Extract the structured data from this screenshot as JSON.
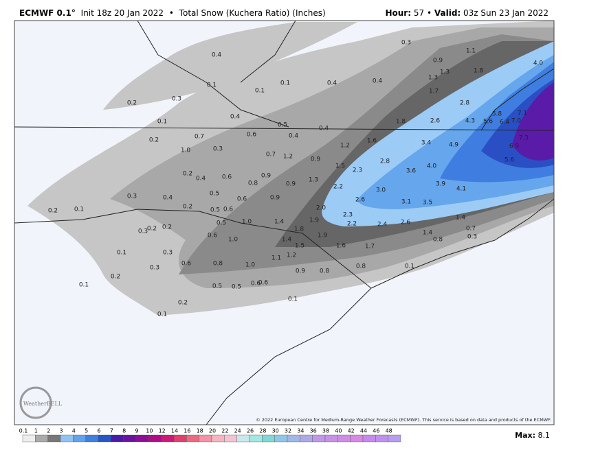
{
  "header": {
    "title": "ECMWF 0.1°",
    "init": "Init 18z 20 Jan 2022",
    "separator": "•",
    "product": "Total Snow (Kuchera Ratio) (Inches)",
    "hour_label": "Hour:",
    "hour": 57,
    "valid_label": "Valid:",
    "valid": "03z Sun 23 Jan 2022"
  },
  "map_labels": [
    "0.4",
    "0.3",
    "1.1",
    "4.0",
    "0.9",
    "1.3",
    "1.8",
    "0.1",
    "0.1",
    "0.1",
    "0.4",
    "0.4",
    "1.3",
    "1.7",
    "0.2",
    "0.3",
    "2.8",
    "5.8",
    "7.1",
    "0.4",
    "0.5",
    "0.4",
    "1.8",
    "2.6",
    "4.3",
    "5.6",
    "6.4",
    "7.0",
    "0.1",
    "0.7",
    "0.6",
    "0.4",
    "1.6",
    "3.4",
    "4.9",
    "7.3",
    "6.9",
    "0.2",
    "1.0",
    "0.3",
    "1.2",
    "0.7",
    "1.2",
    "0.9",
    "2.8",
    "4.0",
    "5.6",
    "1.5",
    "2.3",
    "3.6",
    "0.2",
    "0.4",
    "0.6",
    "0.8",
    "0.9",
    "0.9",
    "1.3",
    "2.2",
    "3.0",
    "3.9",
    "4.1",
    "0.3",
    "0.4",
    "0.5",
    "0.6",
    "0.9",
    "2.6",
    "3.1",
    "3.5",
    "0.2",
    "0.1",
    "0.2",
    "0.5",
    "0.6",
    "2.0",
    "0.5",
    "1.0",
    "1.4",
    "1.9",
    "2.3",
    "2.2",
    "2.4",
    "2.6",
    "0.3",
    "0.2",
    "0.2",
    "1.8",
    "1.4",
    "1.4",
    "0.7",
    "0.6",
    "1.0",
    "1.4",
    "1.9",
    "0.3",
    "0.8",
    "1.5",
    "1.6",
    "1.7",
    "0.3",
    "0.1",
    "1.2",
    "1.1",
    "0.6",
    "0.8",
    "1.0",
    "0.8",
    "0.1",
    "0.3",
    "0.2",
    "0.9",
    "0.8",
    "0.5",
    "0.5",
    "0.6",
    "0.6",
    "0.1",
    "0.1",
    "0.2",
    "0.1"
  ],
  "copyright": "© 2022 European Centre for Medium-Range Weather Forecasts (ECMWF). This service is based on data and products of the ECMWF.",
  "logo": "WeatherBELL",
  "colorbar": {
    "ticks": [
      0.1,
      1,
      2,
      3,
      4,
      5,
      6,
      7,
      8,
      9,
      10,
      12,
      14,
      16,
      18,
      20,
      22,
      24,
      26,
      28,
      30,
      32,
      34,
      36,
      38,
      40,
      42,
      44,
      46,
      48
    ],
    "colors": [
      "#eeeeee",
      "#aaaaaa",
      "#777777",
      "#8fc3f5",
      "#5ea3ec",
      "#3f7fe0",
      "#2557c8",
      "#4a1aa8",
      "#6d12a0",
      "#8e0e95",
      "#b00c86",
      "#cc1a78",
      "#e0406e",
      "#ec6a80",
      "#f493a4",
      "#f7b3c0",
      "#f2c4d2",
      "#c8e8ef",
      "#9fe8e3",
      "#7fd8d8",
      "#8ec8e8",
      "#9fb8e8",
      "#afa8e8",
      "#bf98e8",
      "#c890e8",
      "#d08ae8",
      "#d888e8",
      "#c888f0",
      "#c090f0",
      "#b89cf0"
    ]
  },
  "max_label": "Max:",
  "max": 8.1
}
